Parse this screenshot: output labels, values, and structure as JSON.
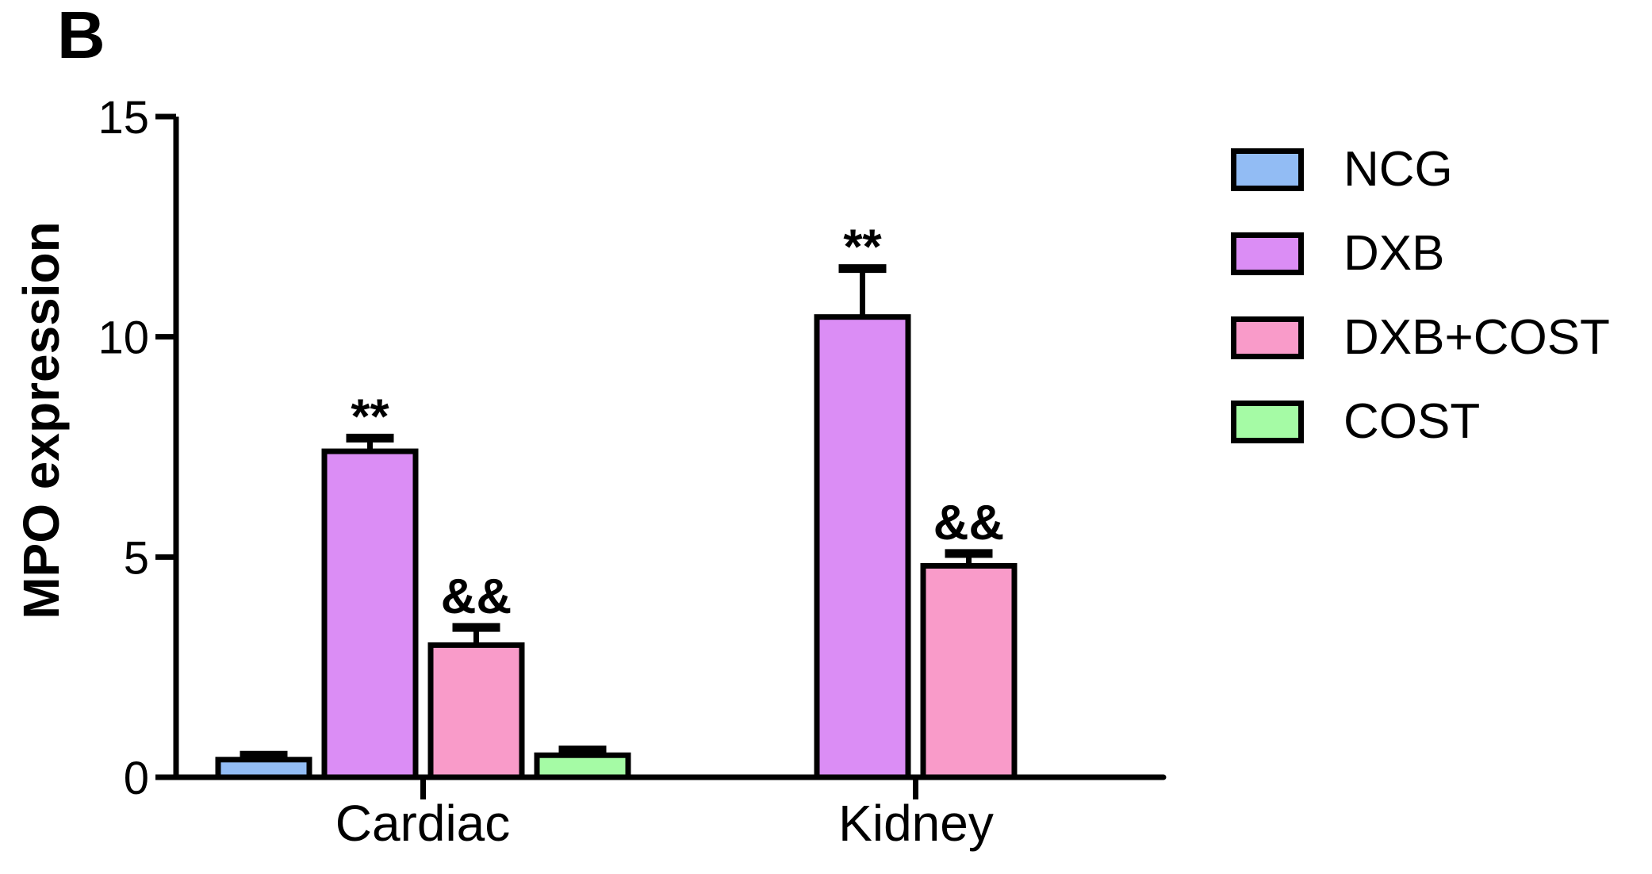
{
  "figure": {
    "panel_label": "B"
  },
  "chart_data": {
    "type": "bar",
    "title": "",
    "ylabel": "MPO expression",
    "xlabel": "",
    "categories": [
      "Cardiac",
      "Kidney"
    ],
    "ylim": [
      0,
      15
    ],
    "yticks": [
      0,
      5,
      10,
      15
    ],
    "grid": false,
    "legend_position": "right",
    "series": [
      {
        "name": "NCG",
        "color": "#92bcf4",
        "values": [
          0.4,
          null
        ],
        "errors": [
          0.1,
          null
        ],
        "annotations": [
          "",
          ""
        ]
      },
      {
        "name": "DXB",
        "color": "#db8df5",
        "values": [
          7.4,
          10.45
        ],
        "errors": [
          0.3,
          1.1
        ],
        "annotations": [
          "**",
          "**"
        ]
      },
      {
        "name": "DXB+COST",
        "color": "#f99bc9",
        "values": [
          3.0,
          4.8
        ],
        "errors": [
          0.4,
          0.28
        ],
        "annotations": [
          "&&",
          "&&"
        ]
      },
      {
        "name": "COST",
        "color": "#a5fba5",
        "values": [
          0.5,
          null
        ],
        "errors": [
          0.12,
          null
        ],
        "annotations": [
          "",
          ""
        ]
      }
    ]
  },
  "legend": {
    "items": [
      {
        "label": "NCG",
        "color": "#92bcf4"
      },
      {
        "label": "DXB",
        "color": "#db8df5"
      },
      {
        "label": "DXB+COST",
        "color": "#f99bc9"
      },
      {
        "label": "COST",
        "color": "#a5fba5"
      }
    ]
  },
  "colors": {
    "axis": "#000000",
    "background": "#ffffff",
    "annotation": "#000000"
  }
}
